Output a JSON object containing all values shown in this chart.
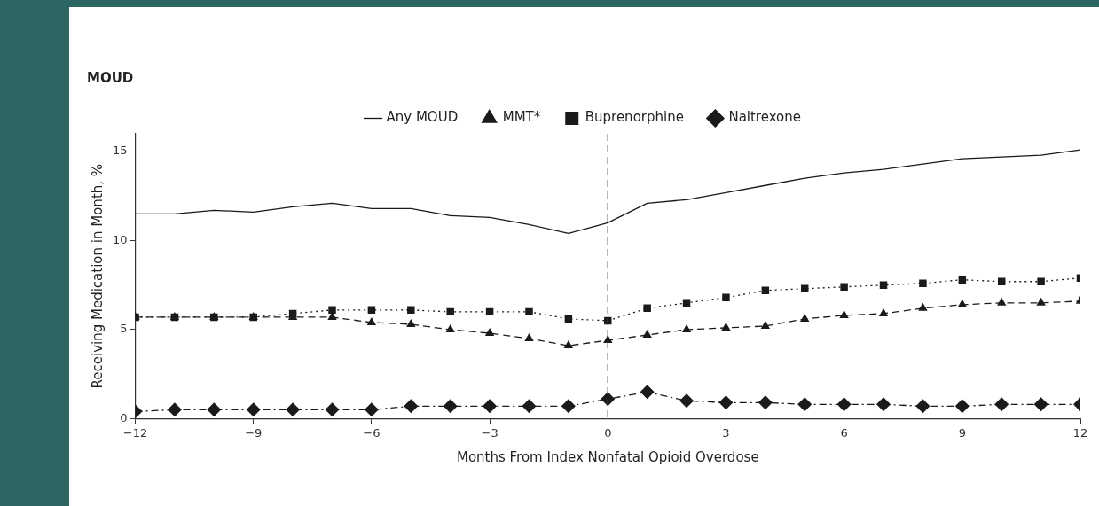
{
  "chart_data": {
    "type": "line",
    "title": "MOUD",
    "xlabel": "Months From Index Nonfatal Opioid Overdose",
    "ylabel": "Receiving Medication in Month, %",
    "x": [
      -12,
      -11,
      -10,
      -9,
      -8,
      -7,
      -6,
      -5,
      -4,
      -3,
      -2,
      -1,
      0,
      1,
      2,
      3,
      4,
      5,
      6,
      7,
      8,
      9,
      10,
      11,
      12
    ],
    "series": [
      {
        "name": "Any MOUD",
        "color": "#1a1a1a",
        "marker": "none",
        "line_style": "solid",
        "values": [
          11.5,
          11.5,
          11.7,
          11.6,
          11.9,
          12.1,
          11.8,
          11.8,
          11.4,
          11.3,
          10.9,
          10.4,
          11.0,
          12.1,
          12.3,
          12.7,
          13.1,
          13.5,
          13.8,
          14.0,
          14.3,
          14.6,
          14.7,
          14.8,
          15.1
        ]
      },
      {
        "name": "MMT*",
        "color": "#1a1a1a",
        "marker": "triangle",
        "line_style": "dashed",
        "values": [
          5.7,
          5.7,
          5.7,
          5.7,
          5.7,
          5.7,
          5.4,
          5.3,
          5.0,
          4.8,
          4.5,
          4.1,
          4.4,
          4.7,
          5.0,
          5.1,
          5.2,
          5.6,
          5.8,
          5.9,
          6.2,
          6.4,
          6.5,
          6.5,
          6.6
        ]
      },
      {
        "name": "Buprenorphine",
        "color": "#1a1a1a",
        "marker": "square",
        "line_style": "dotted",
        "values": [
          5.7,
          5.7,
          5.7,
          5.7,
          5.9,
          6.1,
          6.1,
          6.1,
          6.0,
          6.0,
          6.0,
          5.6,
          5.5,
          6.2,
          6.5,
          6.8,
          7.2,
          7.3,
          7.4,
          7.5,
          7.6,
          7.8,
          7.7,
          7.7,
          7.9
        ]
      },
      {
        "name": "Naltrexone",
        "color": "#1a1a1a",
        "marker": "diamond",
        "line_style": "dashdot",
        "values": [
          0.4,
          0.5,
          0.5,
          0.5,
          0.5,
          0.5,
          0.5,
          0.7,
          0.7,
          0.7,
          0.7,
          0.7,
          1.1,
          1.5,
          1.0,
          0.9,
          0.9,
          0.8,
          0.8,
          0.8,
          0.7,
          0.7,
          0.8,
          0.8,
          0.8
        ]
      }
    ],
    "xlim": [
      -12,
      12
    ],
    "xticks": [
      {
        "value": -12,
        "label": "−12"
      },
      {
        "value": -9,
        "label": "−9"
      },
      {
        "value": -6,
        "label": "−6"
      },
      {
        "value": -3,
        "label": "−3"
      },
      0,
      3,
      6,
      9,
      12
    ],
    "ylim": [
      0,
      16
    ],
    "yticks": [
      0,
      5,
      10,
      15
    ],
    "ref_lines": [
      {
        "axis": "x",
        "value": 0,
        "line_style": "dashed",
        "color": "#444444"
      }
    ],
    "grid": false,
    "legend": "top"
  }
}
